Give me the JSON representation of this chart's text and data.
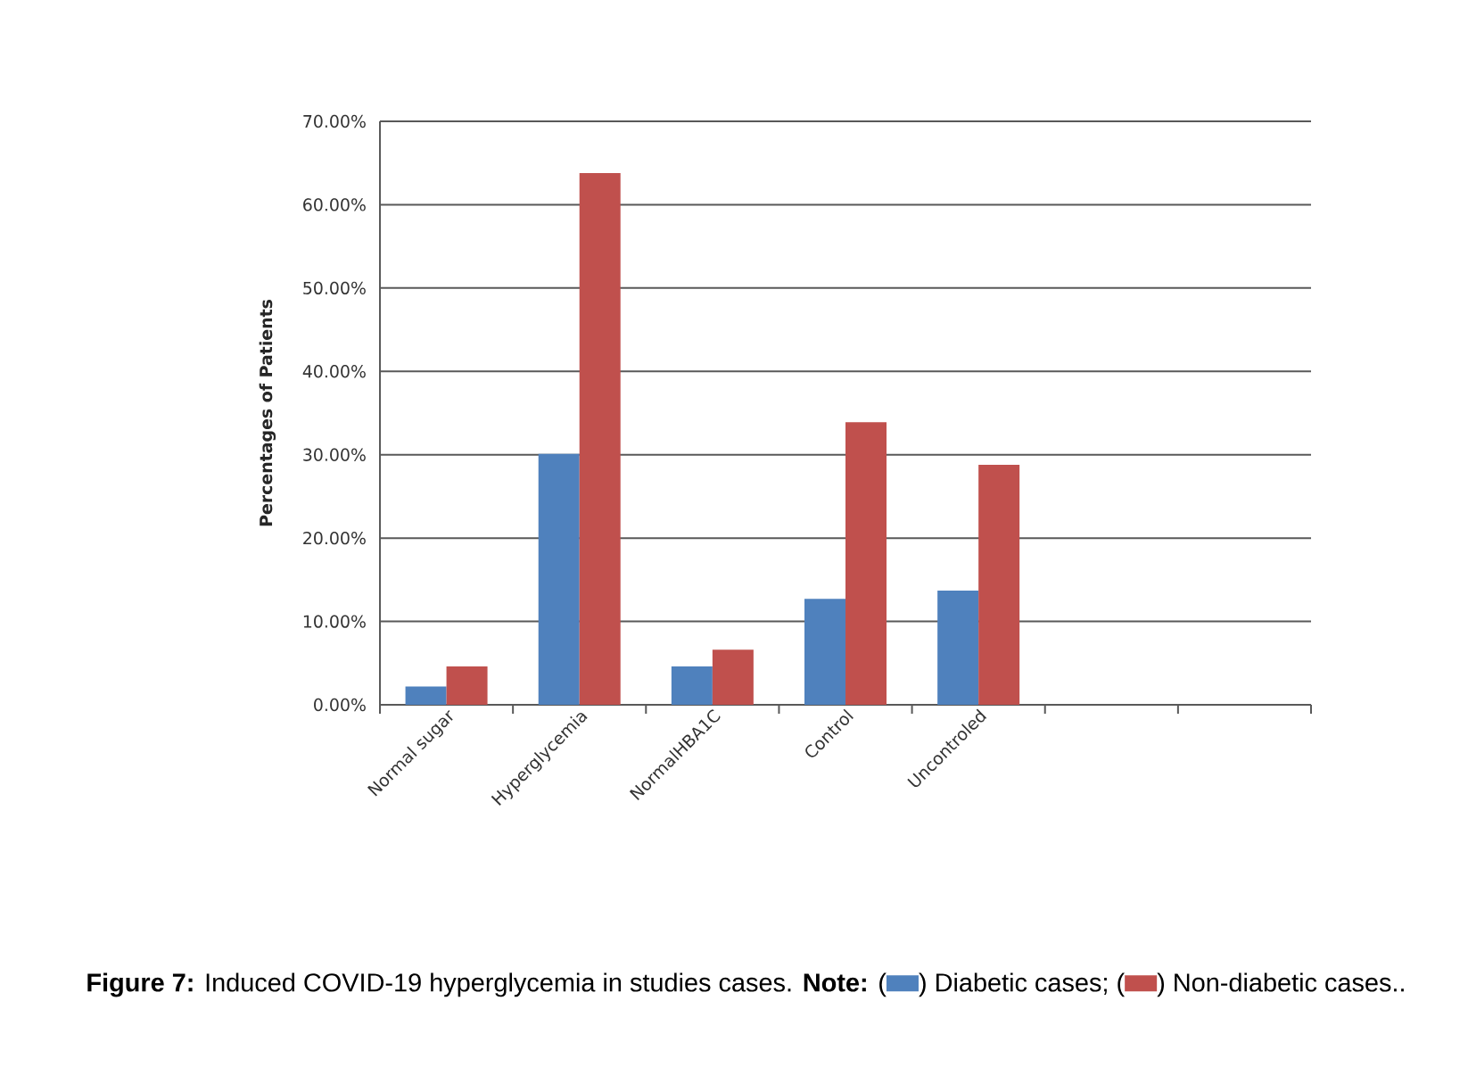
{
  "chart_data": {
    "type": "bar",
    "categories": [
      "Normal sugar",
      "Hyperglycemia",
      "NormalHBA1C",
      "Control",
      "Uncontroled",
      null,
      null
    ],
    "series": [
      {
        "name": "Diabetic cases;",
        "color": "#4f81bd",
        "values": [
          2.2,
          30.1,
          4.6,
          12.7,
          13.7,
          null,
          null
        ]
      },
      {
        "name": "Non-diabetic cases..",
        "color": "#c0504d",
        "values": [
          4.6,
          63.8,
          6.6,
          33.9,
          28.8,
          null,
          null
        ]
      }
    ],
    "ylabel": "Percentages  of Patients",
    "ylim": [
      0,
      70
    ],
    "yticks": [
      {
        "value": 0,
        "label": "0.00%"
      },
      {
        "value": 10,
        "label": "10.00%"
      },
      {
        "value": 20,
        "label": "20.00%"
      },
      {
        "value": 30,
        "label": "30.00%"
      },
      {
        "value": 40,
        "label": "40.00%"
      },
      {
        "value": 50,
        "label": "50.00%"
      },
      {
        "value": 60,
        "label": "60.00%"
      },
      {
        "value": 70,
        "label": "70.00%"
      }
    ],
    "grid": "y",
    "legend": "bottom",
    "annotations": [
      "**Figure 7:** Induced COVID-19 hyperglycemia in studies cases. **Note:**",
      "(",
      ")"
    ]
  }
}
